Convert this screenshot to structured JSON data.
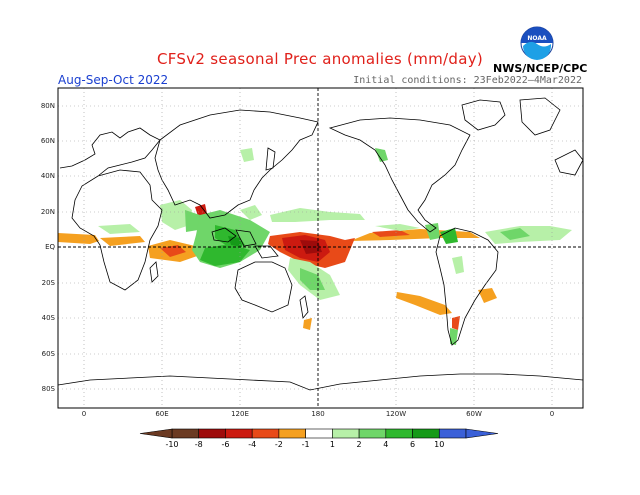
{
  "title": "CFSv2 seasonal Prec anomalies (mm/day)",
  "period": "Aug-Sep-Oct 2022",
  "initial_conditions": "Initial conditions: 23Feb2022—4Mar2022",
  "agency": "NWS/NCEP/CPC",
  "logo": {
    "text": "NOAA",
    "icon": "noaa-logo-icon"
  },
  "lat_labels": [
    "80N",
    "60N",
    "40N",
    "20N",
    "EQ",
    "20S",
    "40S",
    "60S",
    "80S"
  ],
  "lon_labels": [
    "0",
    "60E",
    "120E",
    "180",
    "120W",
    "60W",
    "0"
  ],
  "colorbar": {
    "ticks": [
      "-10",
      "-8",
      "-6",
      "-4",
      "-2",
      "-1",
      "1",
      "2",
      "4",
      "6",
      "10"
    ],
    "colors": [
      "#6b3a22",
      "#9e0b0b",
      "#cc1a10",
      "#e84a18",
      "#f5a020",
      "#ffffff",
      "#b7f0a8",
      "#6fd669",
      "#2fb82e",
      "#159a18",
      "#3a60d8"
    ]
  }
}
